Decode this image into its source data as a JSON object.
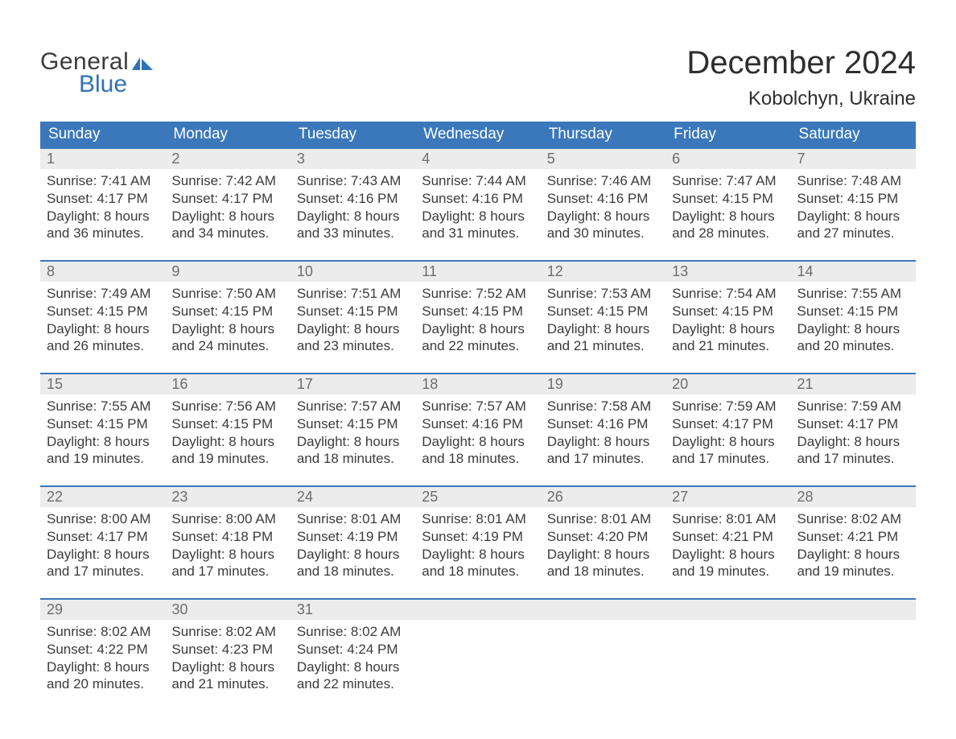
{
  "brand": {
    "word1": "General",
    "word2": "Blue",
    "flag_color": "#2f72b8"
  },
  "title": "December 2024",
  "location": "Kobolchyn, Ukraine",
  "colors": {
    "header_bg": "#3b78bb",
    "header_text": "#ffffff",
    "daynum_bg": "#ececec",
    "daynum_text": "#6d6d6d",
    "body_text": "#3b3b3b",
    "rule": "#3b78bb",
    "page_bg": "#ffffff"
  },
  "typography": {
    "title_fontsize": 40,
    "location_fontsize": 24,
    "dow_fontsize": 19,
    "daynum_fontsize": 18,
    "body_fontsize": 17
  },
  "days_of_week": [
    "Sunday",
    "Monday",
    "Tuesday",
    "Wednesday",
    "Thursday",
    "Friday",
    "Saturday"
  ],
  "weeks": [
    [
      {
        "n": "1",
        "sunrise": "7:41 AM",
        "sunset": "4:17 PM",
        "dl1": "Daylight: 8 hours",
        "dl2": "and 36 minutes."
      },
      {
        "n": "2",
        "sunrise": "7:42 AM",
        "sunset": "4:17 PM",
        "dl1": "Daylight: 8 hours",
        "dl2": "and 34 minutes."
      },
      {
        "n": "3",
        "sunrise": "7:43 AM",
        "sunset": "4:16 PM",
        "dl1": "Daylight: 8 hours",
        "dl2": "and 33 minutes."
      },
      {
        "n": "4",
        "sunrise": "7:44 AM",
        "sunset": "4:16 PM",
        "dl1": "Daylight: 8 hours",
        "dl2": "and 31 minutes."
      },
      {
        "n": "5",
        "sunrise": "7:46 AM",
        "sunset": "4:16 PM",
        "dl1": "Daylight: 8 hours",
        "dl2": "and 30 minutes."
      },
      {
        "n": "6",
        "sunrise": "7:47 AM",
        "sunset": "4:15 PM",
        "dl1": "Daylight: 8 hours",
        "dl2": "and 28 minutes."
      },
      {
        "n": "7",
        "sunrise": "7:48 AM",
        "sunset": "4:15 PM",
        "dl1": "Daylight: 8 hours",
        "dl2": "and 27 minutes."
      }
    ],
    [
      {
        "n": "8",
        "sunrise": "7:49 AM",
        "sunset": "4:15 PM",
        "dl1": "Daylight: 8 hours",
        "dl2": "and 26 minutes."
      },
      {
        "n": "9",
        "sunrise": "7:50 AM",
        "sunset": "4:15 PM",
        "dl1": "Daylight: 8 hours",
        "dl2": "and 24 minutes."
      },
      {
        "n": "10",
        "sunrise": "7:51 AM",
        "sunset": "4:15 PM",
        "dl1": "Daylight: 8 hours",
        "dl2": "and 23 minutes."
      },
      {
        "n": "11",
        "sunrise": "7:52 AM",
        "sunset": "4:15 PM",
        "dl1": "Daylight: 8 hours",
        "dl2": "and 22 minutes."
      },
      {
        "n": "12",
        "sunrise": "7:53 AM",
        "sunset": "4:15 PM",
        "dl1": "Daylight: 8 hours",
        "dl2": "and 21 minutes."
      },
      {
        "n": "13",
        "sunrise": "7:54 AM",
        "sunset": "4:15 PM",
        "dl1": "Daylight: 8 hours",
        "dl2": "and 21 minutes."
      },
      {
        "n": "14",
        "sunrise": "7:55 AM",
        "sunset": "4:15 PM",
        "dl1": "Daylight: 8 hours",
        "dl2": "and 20 minutes."
      }
    ],
    [
      {
        "n": "15",
        "sunrise": "7:55 AM",
        "sunset": "4:15 PM",
        "dl1": "Daylight: 8 hours",
        "dl2": "and 19 minutes."
      },
      {
        "n": "16",
        "sunrise": "7:56 AM",
        "sunset": "4:15 PM",
        "dl1": "Daylight: 8 hours",
        "dl2": "and 19 minutes."
      },
      {
        "n": "17",
        "sunrise": "7:57 AM",
        "sunset": "4:15 PM",
        "dl1": "Daylight: 8 hours",
        "dl2": "and 18 minutes."
      },
      {
        "n": "18",
        "sunrise": "7:57 AM",
        "sunset": "4:16 PM",
        "dl1": "Daylight: 8 hours",
        "dl2": "and 18 minutes."
      },
      {
        "n": "19",
        "sunrise": "7:58 AM",
        "sunset": "4:16 PM",
        "dl1": "Daylight: 8 hours",
        "dl2": "and 17 minutes."
      },
      {
        "n": "20",
        "sunrise": "7:59 AM",
        "sunset": "4:17 PM",
        "dl1": "Daylight: 8 hours",
        "dl2": "and 17 minutes."
      },
      {
        "n": "21",
        "sunrise": "7:59 AM",
        "sunset": "4:17 PM",
        "dl1": "Daylight: 8 hours",
        "dl2": "and 17 minutes."
      }
    ],
    [
      {
        "n": "22",
        "sunrise": "8:00 AM",
        "sunset": "4:17 PM",
        "dl1": "Daylight: 8 hours",
        "dl2": "and 17 minutes."
      },
      {
        "n": "23",
        "sunrise": "8:00 AM",
        "sunset": "4:18 PM",
        "dl1": "Daylight: 8 hours",
        "dl2": "and 17 minutes."
      },
      {
        "n": "24",
        "sunrise": "8:01 AM",
        "sunset": "4:19 PM",
        "dl1": "Daylight: 8 hours",
        "dl2": "and 18 minutes."
      },
      {
        "n": "25",
        "sunrise": "8:01 AM",
        "sunset": "4:19 PM",
        "dl1": "Daylight: 8 hours",
        "dl2": "and 18 minutes."
      },
      {
        "n": "26",
        "sunrise": "8:01 AM",
        "sunset": "4:20 PM",
        "dl1": "Daylight: 8 hours",
        "dl2": "and 18 minutes."
      },
      {
        "n": "27",
        "sunrise": "8:01 AM",
        "sunset": "4:21 PM",
        "dl1": "Daylight: 8 hours",
        "dl2": "and 19 minutes."
      },
      {
        "n": "28",
        "sunrise": "8:02 AM",
        "sunset": "4:21 PM",
        "dl1": "Daylight: 8 hours",
        "dl2": "and 19 minutes."
      }
    ],
    [
      {
        "n": "29",
        "sunrise": "8:02 AM",
        "sunset": "4:22 PM",
        "dl1": "Daylight: 8 hours",
        "dl2": "and 20 minutes."
      },
      {
        "n": "30",
        "sunrise": "8:02 AM",
        "sunset": "4:23 PM",
        "dl1": "Daylight: 8 hours",
        "dl2": "and 21 minutes."
      },
      {
        "n": "31",
        "sunrise": "8:02 AM",
        "sunset": "4:24 PM",
        "dl1": "Daylight: 8 hours",
        "dl2": "and 22 minutes."
      },
      {
        "empty": true
      },
      {
        "empty": true
      },
      {
        "empty": true
      },
      {
        "empty": true
      }
    ]
  ],
  "labels": {
    "sunrise_prefix": "Sunrise: ",
    "sunset_prefix": "Sunset: "
  }
}
